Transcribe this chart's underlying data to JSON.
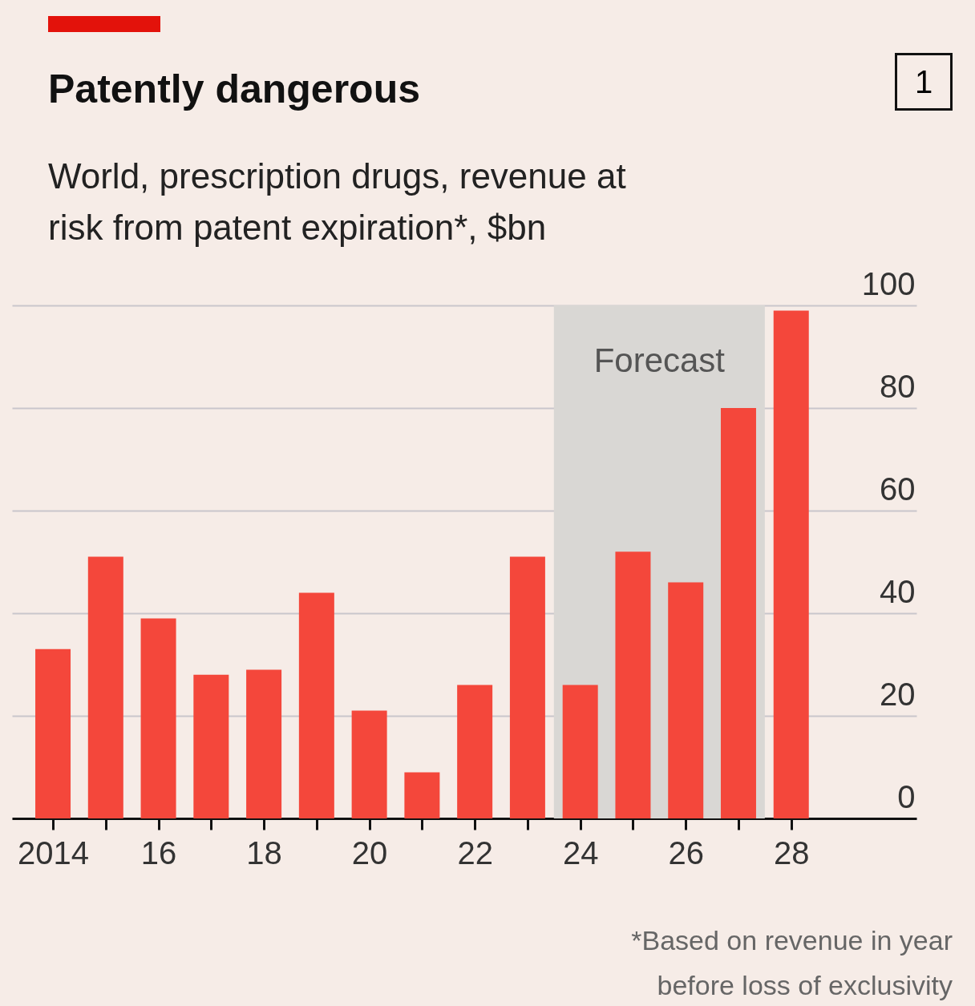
{
  "chart_data": {
    "type": "bar",
    "title": "Patently dangerous",
    "subtitle": "World, prescription drugs, revenue at risk from patent expiration*, $bn",
    "x": [
      2014,
      2015,
      2016,
      2017,
      2018,
      2019,
      2020,
      2021,
      2022,
      2023,
      2024,
      2025,
      2026,
      2027,
      2028
    ],
    "series": [
      {
        "color": "#f4473b",
        "values": [
          33,
          51,
          39,
          28,
          29,
          44,
          21,
          9,
          26,
          51,
          26,
          52,
          46,
          80,
          99
        ]
      }
    ],
    "xlim": [
      2013.3,
      2030.3
    ],
    "xticks": [
      {
        "value": 2014,
        "label": "2014"
      },
      {
        "value": 2015,
        "label": null
      },
      {
        "value": 2016,
        "label": "16"
      },
      {
        "value": 2017,
        "label": null
      },
      {
        "value": 2018,
        "label": "18"
      },
      {
        "value": 2019,
        "label": null
      },
      {
        "value": 2020,
        "label": "20"
      },
      {
        "value": 2021,
        "label": null
      },
      {
        "value": 2022,
        "label": "22"
      },
      {
        "value": 2023,
        "label": null
      },
      {
        "value": 2024,
        "label": "24"
      },
      {
        "value": 2025,
        "label": null
      },
      {
        "value": 2026,
        "label": "26"
      },
      {
        "value": 2027,
        "label": null
      },
      {
        "value": 2028,
        "label": "28"
      }
    ],
    "ylim": [
      0,
      100
    ],
    "yticks": [
      0,
      20,
      40,
      60,
      80,
      100
    ],
    "grid": "y",
    "bands": [
      {
        "axis": "x",
        "from": 2023.5,
        "to": 2027.5,
        "label": "Forecast",
        "color": "#d9d7d4"
      }
    ],
    "annotations": [
      "1",
      "*Based on revenue in year before loss of exclusivity"
    ]
  }
}
